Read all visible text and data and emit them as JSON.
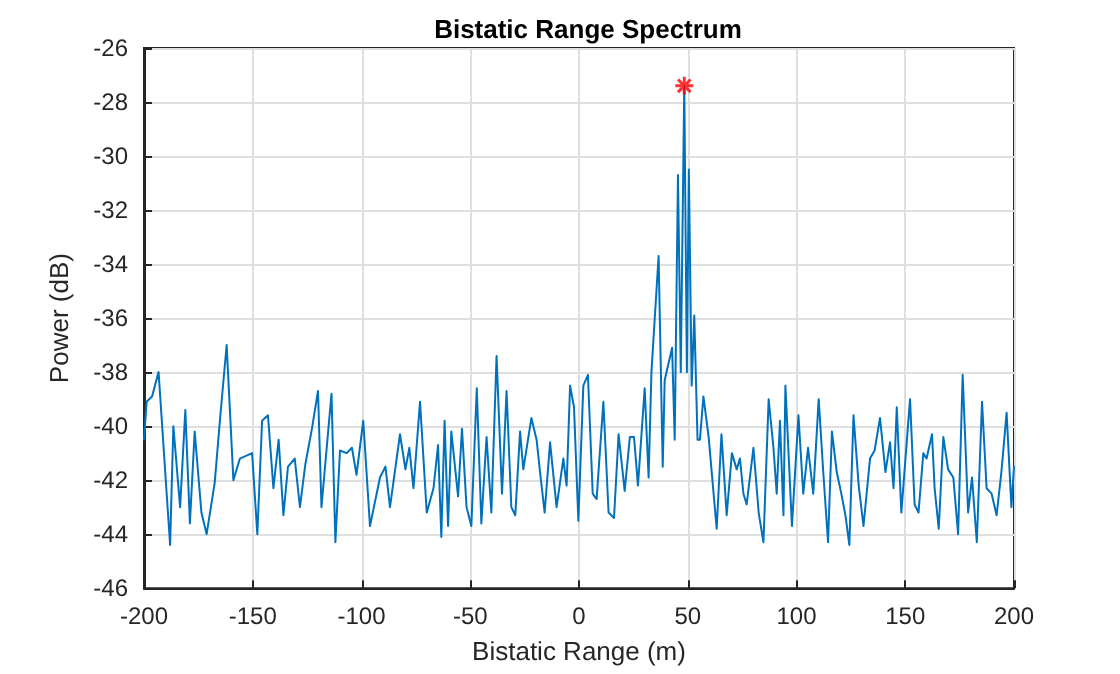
{
  "chart_data": {
    "type": "line",
    "title": "Bistatic Range Spectrum",
    "xlabel": "Bistatic Range (m)",
    "ylabel": "Power (dB)",
    "xlim": [
      -200,
      200
    ],
    "xticks": [
      -200,
      -150,
      -100,
      -50,
      0,
      50,
      100,
      150,
      200
    ],
    "ylim": [
      -46,
      -26
    ],
    "yticks": [
      -46,
      -44,
      -42,
      -40,
      -38,
      -36,
      -34,
      -32,
      -30,
      -28,
      -26
    ],
    "grid": true,
    "line_style": "solid",
    "series": [
      {
        "color": "#0072bd",
        "marker": "none",
        "x": [
          -200,
          -198.8,
          -196.3,
          -193.3,
          -188,
          -186.5,
          -183.4,
          -181,
          -178.9,
          -176.7,
          -173.6,
          -171.2,
          -167.5,
          -165,
          -162,
          -158.9,
          -155.9,
          -150.3,
          -147.9,
          -145.7,
          -143,
          -140.5,
          -138.1,
          -135.9,
          -133.8,
          -130.7,
          -128.3,
          -125.8,
          -122.8,
          -120,
          -118.4,
          -113.8,
          -112,
          -109.9,
          -106.8,
          -104.4,
          -102.3,
          -99.2,
          -96.1,
          -91.5,
          -89,
          -86.9,
          -82.3,
          -79.8,
          -78,
          -76.1,
          -73.1,
          -70,
          -66.9,
          -64.8,
          -63.3,
          -61.8,
          -60.2,
          -58.7,
          -55.6,
          -53.8,
          -51.7,
          -49.5,
          -47,
          -44.9,
          -42.5,
          -40.3,
          -37.9,
          -35.4,
          -33.3,
          -31.1,
          -29.3,
          -27.1,
          -25.6,
          -21.9,
          -19.5,
          -17.9,
          -15.8,
          -13.3,
          -10.3,
          -7.2,
          -5.7,
          -4.1,
          -2.3,
          -0.3,
          2,
          4.1,
          6.3,
          8.1,
          11.2,
          13.6,
          16.1,
          18.2,
          21,
          23.4,
          25.3,
          27.1,
          30.2,
          32,
          33.3,
          36.6,
          38.5,
          39.4,
          42.8,
          44,
          45.5,
          46.8,
          48.4,
          49.6,
          50.5,
          51.8,
          53,
          54.5,
          55.6,
          57.2,
          59.6,
          63.3,
          65.5,
          67.9,
          70.3,
          72.5,
          74,
          75.6,
          77.1,
          80.2,
          82.6,
          84.8,
          87.2,
          89.4,
          90.9,
          92.4,
          94,
          94.9,
          97.9,
          100.9,
          103.1,
          105.3,
          107.7,
          110.2,
          112.3,
          114.5,
          116.3,
          118.5,
          120.6,
          122.5,
          124.3,
          126.2,
          128.6,
          130.8,
          133.8,
          135.9,
          138.4,
          140.9,
          143,
          144.6,
          146.1,
          148.2,
          152.2,
          154.3,
          156.1,
          158.3,
          159.8,
          162.3,
          163.5,
          165.4,
          167.5,
          169.7,
          172.1,
          174.3,
          176.4,
          178.9,
          180.7,
          182.9,
          185.3,
          187.4,
          189.7,
          192,
          194.2,
          196.6,
          198.8,
          200
        ],
        "values": [
          -40.5,
          -39.1,
          -38.9,
          -38,
          -44.4,
          -40,
          -43,
          -39.4,
          -43.6,
          -40.2,
          -43.2,
          -44,
          -42.1,
          -39.7,
          -37,
          -42,
          -41.2,
          -41,
          -44,
          -39.8,
          -39.6,
          -42.3,
          -40.5,
          -43.3,
          -41.5,
          -41.2,
          -43,
          -41.4,
          -40.1,
          -38.7,
          -43,
          -38.8,
          -44.3,
          -40.9,
          -41,
          -40.8,
          -41.8,
          -39.8,
          -43.7,
          -41.9,
          -41.5,
          -43,
          -40.3,
          -41.6,
          -40.8,
          -42.3,
          -39.1,
          -43.2,
          -42.3,
          -40.7,
          -44.1,
          -39.8,
          -43.7,
          -40.2,
          -42.6,
          -40.1,
          -43,
          -43.7,
          -38.6,
          -43.6,
          -40.4,
          -43.2,
          -37.4,
          -42.5,
          -38.7,
          -43,
          -43.3,
          -40.2,
          -41.6,
          -39.7,
          -40.5,
          -41.7,
          -43.2,
          -40.6,
          -43,
          -41.2,
          -42.2,
          -38.5,
          -39.3,
          -43.5,
          -38.5,
          -38.1,
          -42.5,
          -42.7,
          -39.1,
          -43.2,
          -43.4,
          -40.3,
          -42.4,
          -40.4,
          -40.4,
          -42.2,
          -38.6,
          -41.9,
          -38,
          -33.7,
          -41.5,
          -38.3,
          -37.1,
          -40.5,
          -30.7,
          -38,
          -27.4,
          -38,
          -30.5,
          -38.5,
          -35.9,
          -40.5,
          -40.5,
          -38.9,
          -40.4,
          -43.8,
          -40.3,
          -43.3,
          -41,
          -41.6,
          -41.2,
          -42.5,
          -42.9,
          -40.8,
          -43.2,
          -44.3,
          -39,
          -40.8,
          -42.5,
          -39.8,
          -43.3,
          -38.5,
          -43.7,
          -39.6,
          -42.5,
          -40.8,
          -42.5,
          -39,
          -41.7,
          -44.3,
          -40.2,
          -41.7,
          -42.5,
          -43.3,
          -44.4,
          -39.6,
          -42.2,
          -43.7,
          -41.2,
          -40.9,
          -39.7,
          -41.7,
          -40.6,
          -42.3,
          -39.3,
          -43.2,
          -39,
          -42.9,
          -43.2,
          -41,
          -41.2,
          -40.3,
          -42.3,
          -43.8,
          -40.4,
          -41.6,
          -41.9,
          -44,
          -38.1,
          -43.2,
          -41.9,
          -44.3,
          -39.1,
          -42.3,
          -42.5,
          -43.3,
          -41.7,
          -39.5,
          -43,
          -41.5
        ]
      },
      {
        "type": "scatter",
        "color": "#ff0000",
        "marker": "cross",
        "x": [
          48.4
        ],
        "values": [
          -27.4
        ]
      }
    ]
  }
}
